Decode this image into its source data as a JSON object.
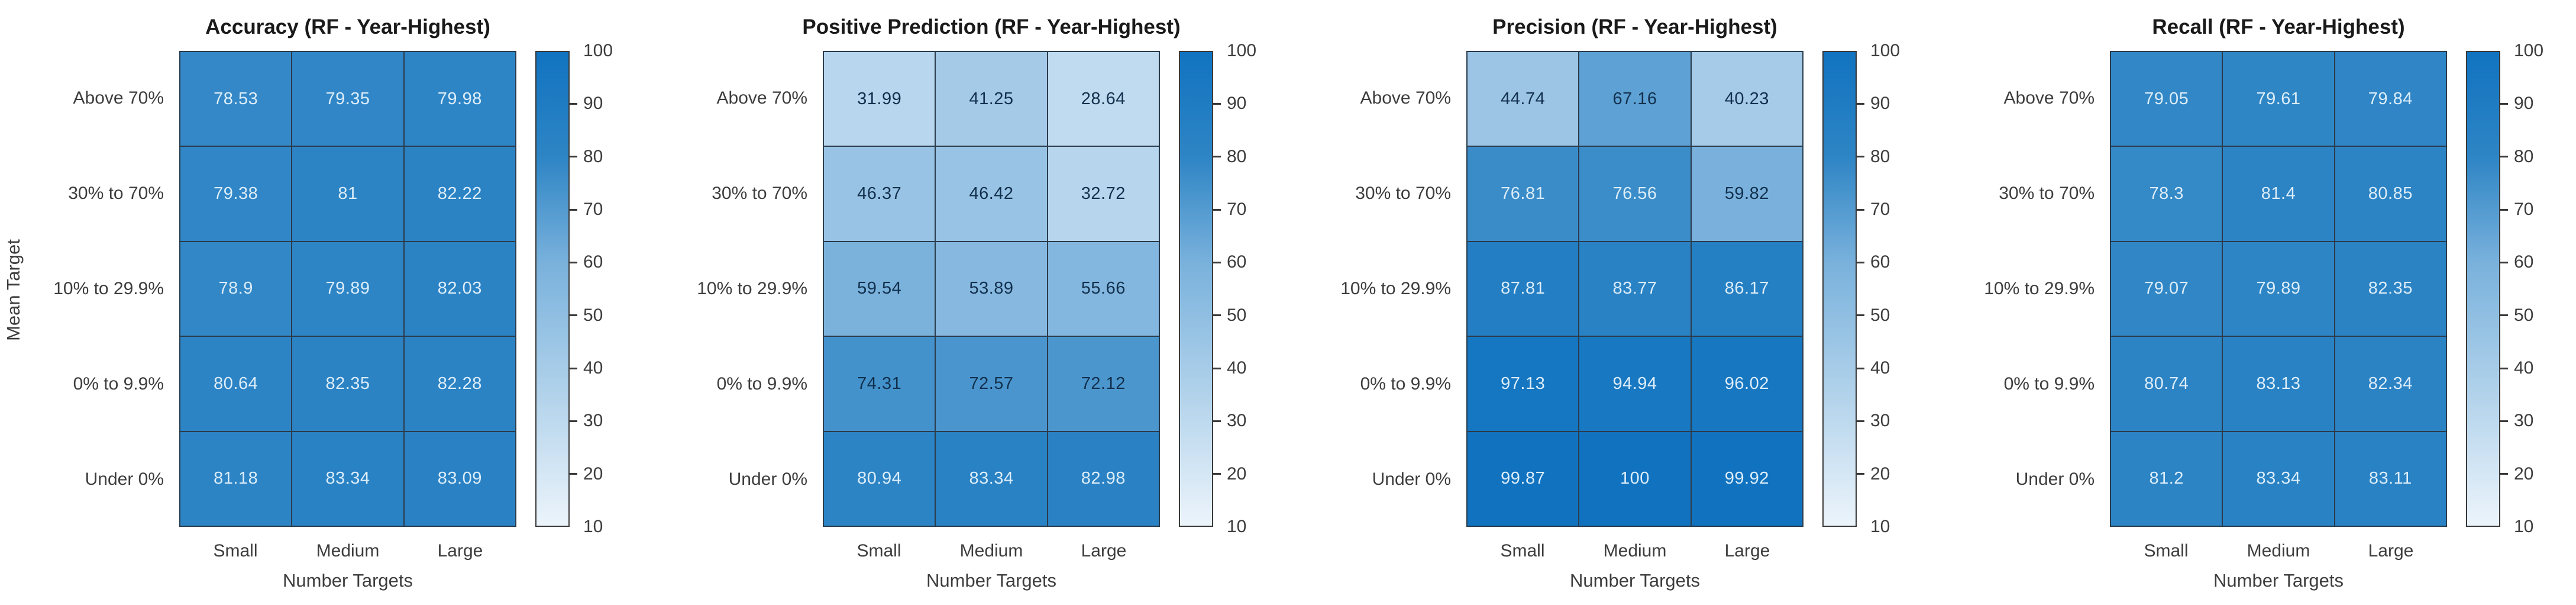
{
  "style": {
    "background": "#ffffff",
    "title_text": "#1a1a1a",
    "axis_text": "#3d3d3d",
    "grid_line": "#2b3c4c",
    "cell_text_light": "#dcedf9",
    "cell_text_dark": "#12304d",
    "light_text_threshold": 75.5,
    "colormap_stops": [
      {
        "value": 10,
        "color": "#ecf4fb"
      },
      {
        "value": 30,
        "color": "#bdd9ee"
      },
      {
        "value": 60,
        "color": "#79b1dc"
      },
      {
        "value": 80,
        "color": "#2e85c5"
      },
      {
        "value": 100,
        "color": "#1173c0"
      }
    ]
  },
  "chart_data": [
    {
      "type": "heatmap",
      "title": "Accuracy (RF - Year-Highest)",
      "xlabel": "Number Targets",
      "ylabel": "Mean Target",
      "x_categories": [
        "Small",
        "Medium",
        "Large"
      ],
      "y_categories": [
        "Above 70%",
        "30% to 70%",
        "10% to 29.9%",
        "0% to 9.9%",
        "Under 0%"
      ],
      "values": [
        [
          78.53,
          79.35,
          79.98
        ],
        [
          79.38,
          81,
          82.22
        ],
        [
          78.9,
          79.89,
          82.03
        ],
        [
          80.64,
          82.35,
          82.28
        ],
        [
          81.18,
          83.34,
          83.09
        ]
      ],
      "color_range": [
        10,
        100
      ],
      "colorbar_ticks": [
        100,
        90,
        80,
        70,
        60,
        50,
        40,
        30,
        20,
        10
      ],
      "grid": true,
      "legend_position": "right-colorbar"
    },
    {
      "type": "heatmap",
      "title": "Positive Prediction (RF - Year-Highest)",
      "xlabel": "Number Targets",
      "ylabel": "",
      "x_categories": [
        "Small",
        "Medium",
        "Large"
      ],
      "y_categories": [
        "Above 70%",
        "30% to 70%",
        "10% to 29.9%",
        "0% to 9.9%",
        "Under 0%"
      ],
      "values": [
        [
          31.99,
          41.25,
          28.64
        ],
        [
          46.37,
          46.42,
          32.72
        ],
        [
          59.54,
          53.89,
          55.66
        ],
        [
          74.31,
          72.57,
          72.12
        ],
        [
          80.94,
          83.34,
          82.98
        ]
      ],
      "color_range": [
        10,
        100
      ],
      "colorbar_ticks": [
        100,
        90,
        80,
        70,
        60,
        50,
        40,
        30,
        20,
        10
      ],
      "grid": true,
      "legend_position": "right-colorbar"
    },
    {
      "type": "heatmap",
      "title": "Precision (RF - Year-Highest)",
      "xlabel": "Number Targets",
      "ylabel": "",
      "x_categories": [
        "Small",
        "Medium",
        "Large"
      ],
      "y_categories": [
        "Above 70%",
        "30% to 70%",
        "10% to 29.9%",
        "0% to 9.9%",
        "Under 0%"
      ],
      "values": [
        [
          44.74,
          67.16,
          40.23
        ],
        [
          76.81,
          76.56,
          59.82
        ],
        [
          87.81,
          83.77,
          86.17
        ],
        [
          97.13,
          94.94,
          96.02
        ],
        [
          99.87,
          100,
          99.92
        ]
      ],
      "color_range": [
        10,
        100
      ],
      "colorbar_ticks": [
        100,
        90,
        80,
        70,
        60,
        50,
        40,
        30,
        20,
        10
      ],
      "grid": true,
      "legend_position": "right-colorbar"
    },
    {
      "type": "heatmap",
      "title": "Recall (RF - Year-Highest)",
      "xlabel": "Number Targets",
      "ylabel": "",
      "x_categories": [
        "Small",
        "Medium",
        "Large"
      ],
      "y_categories": [
        "Above 70%",
        "30% to 70%",
        "10% to 29.9%",
        "0% to 9.9%",
        "Under 0%"
      ],
      "values": [
        [
          79.05,
          79.61,
          79.84
        ],
        [
          78.3,
          81.4,
          80.85
        ],
        [
          79.07,
          79.89,
          82.35
        ],
        [
          80.74,
          83.13,
          82.34
        ],
        [
          81.2,
          83.34,
          83.11
        ]
      ],
      "color_range": [
        10,
        100
      ],
      "colorbar_ticks": [
        100,
        90,
        80,
        70,
        60,
        50,
        40,
        30,
        20,
        10
      ],
      "grid": true,
      "legend_position": "right-colorbar"
    }
  ]
}
